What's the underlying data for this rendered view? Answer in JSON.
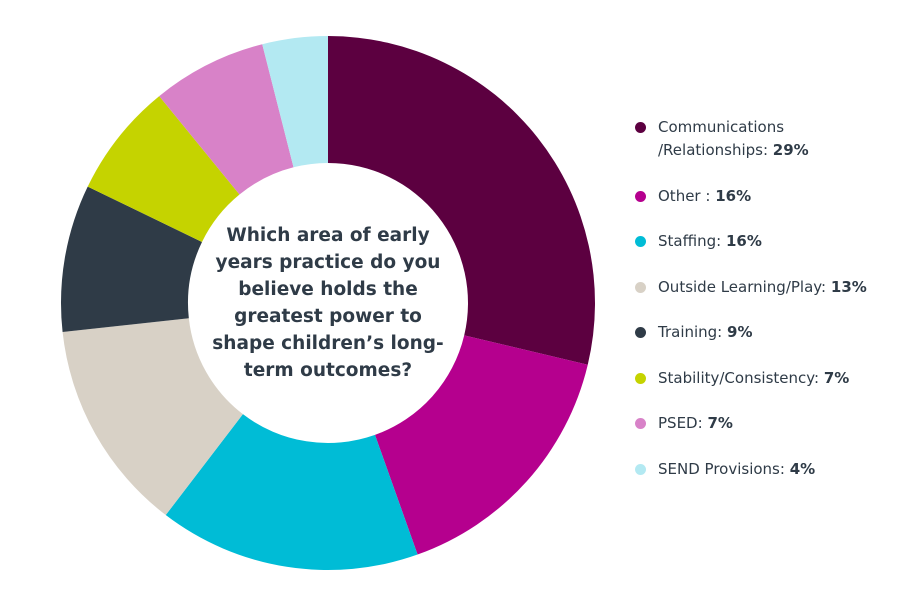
{
  "chart_data": {
    "type": "donut",
    "title": "Which area of early years practice do you believe holds the greatest power to shape children’s long-term outcomes?",
    "categories": [
      "Communications /Relationships:",
      "Other :",
      "Staffing:",
      "Outside Learning/Play:",
      "Training:",
      "Stability/Consistency:",
      "PSED:",
      "SEND Provisions:"
    ],
    "values": [
      29,
      16,
      16,
      13,
      9,
      7,
      7,
      4
    ],
    "value_labels": [
      "29%",
      "16%",
      "16%",
      "13%",
      "9%",
      "7%",
      "7%",
      "4%"
    ],
    "colors": [
      "#5c0040",
      "#b5008e",
      "#00bcd6",
      "#d8d1c6",
      "#2f3b47",
      "#c5d300",
      "#d882c8",
      "#b3e9f2"
    ]
  }
}
